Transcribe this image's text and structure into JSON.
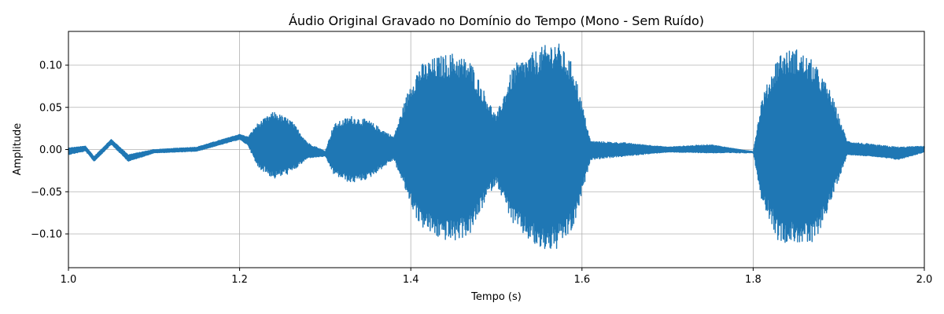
{
  "chart_data": {
    "type": "area",
    "title": "Áudio Original Gravado no Domínio do Tempo (Mono - Sem Ruído)",
    "xlabel": "Tempo (s)",
    "ylabel": "Amplitude",
    "xlim": [
      1.0,
      2.0
    ],
    "ylim": [
      -0.14,
      0.14
    ],
    "xticks": [
      1.0,
      1.2,
      1.4,
      1.6,
      1.8,
      2.0
    ],
    "xtick_labels": [
      "1.0",
      "1.2",
      "1.4",
      "1.6",
      "1.8",
      "2.0"
    ],
    "yticks": [
      -0.1,
      -0.05,
      0.0,
      0.05,
      0.1
    ],
    "ytick_labels": [
      "−0.10",
      "−0.05",
      "0.00",
      "0.05",
      "0.10"
    ],
    "grid": true,
    "color": "#1f77b4",
    "series": [
      {
        "x": [
          1.0,
          1.02,
          1.03,
          1.05,
          1.07,
          1.1,
          1.15,
          1.2,
          1.21,
          1.22,
          1.24,
          1.26,
          1.28,
          1.3,
          1.31,
          1.33,
          1.35,
          1.38,
          1.4,
          1.41,
          1.43,
          1.45,
          1.47,
          1.49,
          1.5,
          1.52,
          1.55,
          1.57,
          1.59,
          1.61,
          1.65,
          1.7,
          1.75,
          1.8,
          1.81,
          1.83,
          1.85,
          1.87,
          1.89,
          1.91,
          1.94,
          1.97,
          2.0
        ],
        "y_center": [
          -0.002,
          0.002,
          -0.012,
          0.01,
          -0.01,
          -0.002,
          0.0,
          0.015,
          0.01,
          0.006,
          0.005,
          0.004,
          -0.003,
          -0.005,
          0.0,
          -0.002,
          -0.001,
          0.005,
          0.0,
          0.0,
          -0.003,
          -0.005,
          -0.005,
          0.0,
          0.0,
          -0.002,
          -0.005,
          0.0,
          -0.002,
          0.0,
          0.0,
          0.0,
          0.0,
          0.0,
          0.0,
          -0.005,
          -0.005,
          -0.005,
          0.0,
          0.0,
          -0.005,
          -0.005,
          0.0
        ],
        "y_upper": [
          0.002,
          0.004,
          -0.008,
          0.012,
          -0.006,
          0.0,
          0.003,
          0.018,
          0.015,
          0.03,
          0.045,
          0.035,
          0.008,
          -0.002,
          0.03,
          0.04,
          0.035,
          0.015,
          0.08,
          0.1,
          0.11,
          0.115,
          0.105,
          0.06,
          0.04,
          0.1,
          0.12,
          0.13,
          0.1,
          0.01,
          0.008,
          0.003,
          0.006,
          -0.003,
          0.06,
          0.115,
          0.12,
          0.105,
          0.07,
          0.01,
          0.006,
          0.003,
          0.004
        ],
        "y_lower": [
          -0.006,
          -0.002,
          -0.014,
          0.006,
          -0.014,
          -0.004,
          -0.002,
          0.012,
          0.005,
          -0.02,
          -0.035,
          -0.028,
          -0.01,
          -0.008,
          -0.03,
          -0.04,
          -0.035,
          -0.012,
          -0.065,
          -0.09,
          -0.105,
          -0.11,
          -0.1,
          -0.055,
          -0.04,
          -0.09,
          -0.12,
          -0.12,
          -0.095,
          -0.012,
          -0.008,
          -0.003,
          -0.004,
          -0.004,
          -0.06,
          -0.11,
          -0.11,
          -0.115,
          -0.065,
          -0.006,
          -0.008,
          -0.012,
          -0.003
        ]
      }
    ]
  }
}
